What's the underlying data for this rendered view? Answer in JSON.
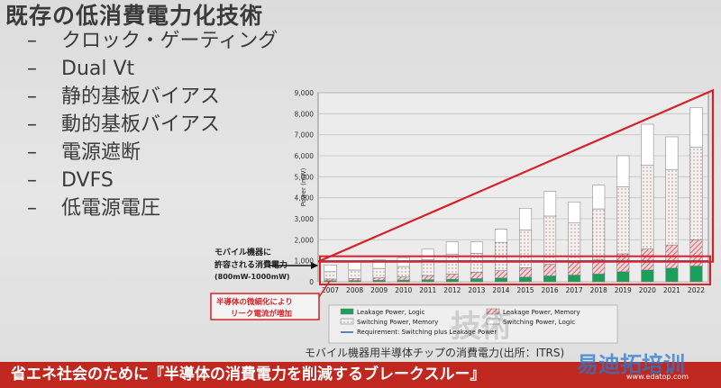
{
  "title": "既存の低消費電力化技術",
  "bullets": [
    {
      "dash": "–",
      "text": "クロック・ゲーティング"
    },
    {
      "dash": "–",
      "text": "Dual Vt"
    },
    {
      "dash": "–",
      "text": "静的基板バイアス"
    },
    {
      "dash": "–",
      "text": "動的基板バイアス"
    },
    {
      "dash": "–",
      "text": "電源遮断"
    },
    {
      "dash": "–",
      "text": "DVFS"
    },
    {
      "dash": "–",
      "text": "低電源電圧"
    }
  ],
  "annotations": {
    "mobile_allowed_line1": "モバイル機器に",
    "mobile_allowed_line2": "許容される消費電力",
    "mobile_allowed_line3": "(800mW-1000mW)",
    "leak_line1": "半導体の微細化により",
    "leak_line2": "リーク電流が増加"
  },
  "caption": "モバイル機器用半導体チップの消費電力(出所：ITRS)",
  "banner": "省エネ社会のために『半導体の消費電力を削減するブレークスルー』",
  "watermarks": {
    "w1": "技術",
    "w2": "易迪拓培训",
    "w3": "www.edatop.com"
  },
  "colors": {
    "leak_logic": "#1aa05a",
    "leak_memory": "#d08a92",
    "switch_memory": "#f3ecec",
    "switch_logic": "#ffffff",
    "red": "#d4242a",
    "requirement": "#2c4f9e"
  },
  "chart_data": {
    "type": "bar",
    "stacked": true,
    "ylabel": "Power (mW)",
    "ylim": [
      0,
      9000
    ],
    "yticks": [
      "0",
      "1,000",
      "2,000",
      "3,000",
      "4,000",
      "5,000",
      "6,000",
      "7,000",
      "8,000",
      "9,000"
    ],
    "categories": [
      "2007",
      "2008",
      "2009",
      "2010",
      "2011",
      "2012",
      "2013",
      "2014",
      "2015",
      "2016",
      "2017",
      "2018",
      "2019",
      "2020",
      "2021",
      "2022"
    ],
    "series": [
      {
        "name": "Leakage Power, Logic",
        "values": [
          50,
          60,
          70,
          80,
          100,
          120,
          150,
          180,
          220,
          280,
          320,
          370,
          480,
          560,
          650,
          750
        ]
      },
      {
        "name": "Leakage Power, Memory",
        "values": [
          80,
          100,
          120,
          150,
          200,
          250,
          300,
          350,
          450,
          550,
          600,
          700,
          850,
          1000,
          1100,
          1250
        ]
      },
      {
        "name": "Switching Power, Memory",
        "values": [
          350,
          400,
          450,
          500,
          750,
          950,
          900,
          1350,
          1800,
          2300,
          1900,
          2400,
          3200,
          4000,
          3600,
          4400
        ]
      },
      {
        "name": "Switching Power, Logic",
        "values": [
          320,
          390,
          410,
          420,
          500,
          580,
          550,
          620,
          1030,
          1170,
          980,
          1130,
          1470,
          1940,
          1550,
          1900
        ]
      }
    ],
    "requirement": {
      "name": "Requirement: Switching plus Leakage Power",
      "value": 1000
    },
    "legend": [
      "Leakage Power, Logic",
      "Leakage Power, Memory",
      "Switching Power, Memory",
      "Switching Power, Logic",
      "Requirement: Switching plus Leakage Power"
    ],
    "legend_placement": "bottom",
    "grid": true
  }
}
